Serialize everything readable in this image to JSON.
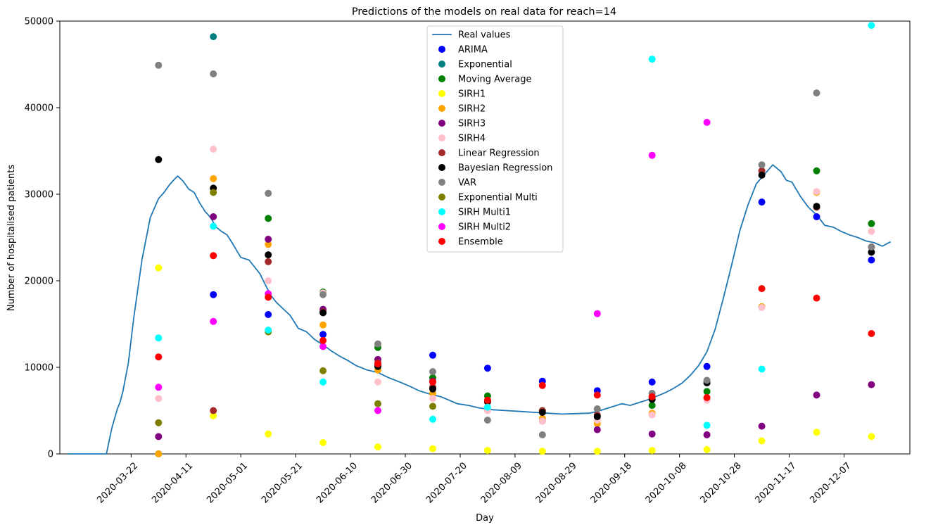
{
  "chart_data": {
    "type": "line",
    "title": "Predictions of the models on real data for reach=14",
    "xlabel": "Day",
    "ylabel": "Number of hospitalised patients",
    "xlim": [
      "2020-02-25",
      "2020-12-31"
    ],
    "ylim": [
      0,
      50000
    ],
    "x_ticks": [
      "2020-03-22",
      "2020-04-11",
      "2020-05-01",
      "2020-05-21",
      "2020-06-10",
      "2020-06-30",
      "2020-07-20",
      "2020-08-09",
      "2020-08-29",
      "2020-09-18",
      "2020-10-08",
      "2020-10-28",
      "2020-11-17",
      "2020-12-07"
    ],
    "y_ticks": [
      0,
      10000,
      20000,
      30000,
      40000,
      50000
    ],
    "grid": false,
    "legend_position": "top-center",
    "prediction_dates": [
      "2020-04-01",
      "2020-04-21",
      "2020-05-11",
      "2020-05-31",
      "2020-06-20",
      "2020-07-10",
      "2020-07-30",
      "2020-08-19",
      "2020-09-08",
      "2020-09-28",
      "2020-10-18",
      "2020-11-07",
      "2020-11-27",
      "2020-12-17"
    ],
    "real_values": {
      "name": "Real values",
      "color": "#1f77b4",
      "x": [
        "2020-02-28",
        "2020-03-06",
        "2020-03-13",
        "2020-03-15",
        "2020-03-17",
        "2020-03-18",
        "2020-03-19",
        "2020-03-21",
        "2020-03-23",
        "2020-03-26",
        "2020-03-29",
        "2020-04-01",
        "2020-04-03",
        "2020-04-05",
        "2020-04-07",
        "2020-04-08",
        "2020-04-10",
        "2020-04-12",
        "2020-04-14",
        "2020-04-16",
        "2020-04-18",
        "2020-04-20",
        "2020-04-22",
        "2020-04-24",
        "2020-04-26",
        "2020-04-28",
        "2020-05-01",
        "2020-05-04",
        "2020-05-06",
        "2020-05-08",
        "2020-05-10",
        "2020-05-12",
        "2020-05-14",
        "2020-05-16",
        "2020-05-19",
        "2020-05-22",
        "2020-05-25",
        "2020-05-28",
        "2020-05-31",
        "2020-06-03",
        "2020-06-06",
        "2020-06-09",
        "2020-06-12",
        "2020-06-16",
        "2020-06-20",
        "2020-06-24",
        "2020-06-28",
        "2020-07-01",
        "2020-07-05",
        "2020-07-09",
        "2020-07-13",
        "2020-07-16",
        "2020-07-19",
        "2020-07-23",
        "2020-07-27",
        "2020-08-01",
        "2020-08-06",
        "2020-08-11",
        "2020-08-16",
        "2020-08-21",
        "2020-08-26",
        "2020-08-31",
        "2020-09-05",
        "2020-09-08",
        "2020-09-11",
        "2020-09-14",
        "2020-09-17",
        "2020-09-20",
        "2020-09-23",
        "2020-09-26",
        "2020-09-30",
        "2020-10-03",
        "2020-10-06",
        "2020-10-09",
        "2020-10-12",
        "2020-10-15",
        "2020-10-18",
        "2020-10-21",
        "2020-10-24",
        "2020-10-27",
        "2020-10-30",
        "2020-11-02",
        "2020-11-05",
        "2020-11-08",
        "2020-11-11",
        "2020-11-14",
        "2020-11-16",
        "2020-11-18",
        "2020-11-21",
        "2020-11-24",
        "2020-11-27",
        "2020-11-30",
        "2020-12-03",
        "2020-12-06",
        "2020-12-09",
        "2020-12-12",
        "2020-12-15",
        "2020-12-18",
        "2020-12-21",
        "2020-12-24"
      ],
      "y": [
        0,
        0,
        0,
        3000,
        5200,
        6000,
        7200,
        10500,
        15800,
        22500,
        27300,
        29500,
        30200,
        31100,
        31800,
        32100,
        31500,
        30600,
        30200,
        29000,
        28000,
        27300,
        26200,
        25700,
        25300,
        24300,
        22700,
        22400,
        21600,
        20800,
        19500,
        18300,
        17500,
        16900,
        16000,
        14500,
        14100,
        13200,
        12600,
        11900,
        11300,
        10800,
        10200,
        9700,
        9400,
        8800,
        8300,
        7900,
        7300,
        6900,
        6600,
        6200,
        5800,
        5600,
        5300,
        5100,
        5000,
        4900,
        4800,
        4700,
        4600,
        4650,
        4700,
        4900,
        5200,
        5500,
        5800,
        5600,
        5900,
        6200,
        6700,
        7100,
        7600,
        8200,
        9100,
        10200,
        11800,
        14400,
        18000,
        21800,
        25800,
        28800,
        31200,
        32300,
        33400,
        32600,
        31600,
        31400,
        29800,
        28500,
        27600,
        26400,
        26200,
        25700,
        25300,
        25000,
        24600,
        24400,
        24000,
        24500
      ]
    },
    "series": [
      {
        "name": "ARIMA",
        "color": "#0000ff",
        "values": [
          null,
          18400,
          16100,
          13800,
          10300,
          11400,
          9900,
          8400,
          7300,
          8300,
          10100,
          29100,
          27400,
          22400
        ]
      },
      {
        "name": "Exponential",
        "color": "#008080",
        "values": [
          0,
          48200,
          null,
          null,
          null,
          null,
          null,
          null,
          null,
          null,
          null,
          null,
          null,
          null
        ]
      },
      {
        "name": "Moving Average",
        "color": "#008000",
        "values": [
          null,
          null,
          27200,
          18700,
          12300,
          8800,
          6700,
          5000,
          4400,
          5600,
          7200,
          17000,
          32700,
          26600
        ]
      },
      {
        "name": "SIRH1",
        "color": "#ffff00",
        "values": [
          21500,
          4400,
          2300,
          1300,
          800,
          600,
          400,
          300,
          300,
          400,
          500,
          1500,
          2500,
          2000
        ]
      },
      {
        "name": "SIRH2",
        "color": "#ffa500",
        "values": [
          0,
          31800,
          24200,
          14900,
          9700,
          7000,
          6000,
          4100,
          3500,
          4700,
          6400,
          17000,
          30200,
          null
        ]
      },
      {
        "name": "SIRH3",
        "color": "#800080",
        "values": [
          2000,
          27400,
          24800,
          16700,
          10900,
          8400,
          null,
          3800,
          2800,
          2300,
          2200,
          3200,
          6800,
          8000
        ]
      },
      {
        "name": "SIRH4",
        "color": "#ffc0cb",
        "values": [
          6400,
          35200,
          20000,
          18600,
          8300,
          6400,
          5000,
          3800,
          3900,
          4500,
          6200,
          16900,
          30300,
          25700
        ]
      },
      {
        "name": "Linear Regression",
        "color": "#a52a2a",
        "values": [
          null,
          5000,
          22200,
          16400,
          10500,
          7700,
          6000,
          5000,
          4500,
          6600,
          8400,
          32700,
          28500,
          23900
        ]
      },
      {
        "name": "Bayesian Regression",
        "color": "#000000",
        "values": [
          34000,
          30700,
          23000,
          16300,
          10100,
          7500,
          6100,
          4800,
          4300,
          6300,
          8200,
          32200,
          28600,
          23300
        ]
      },
      {
        "name": "VAR",
        "color": "#808080",
        "values": [
          44900,
          43900,
          30100,
          18400,
          12700,
          9500,
          3900,
          2200,
          5200,
          7000,
          8500,
          33400,
          41700,
          23900
        ]
      },
      {
        "name": "Exponential Multi",
        "color": "#808000",
        "values": [
          3600,
          30200,
          14100,
          9600,
          5800,
          5500,
          null,
          null,
          null,
          null,
          null,
          null,
          null,
          null
        ]
      },
      {
        "name": "SIRH Multi1",
        "color": "#00ffff",
        "values": [
          13400,
          26300,
          14300,
          8300,
          null,
          4000,
          5400,
          null,
          null,
          45600,
          3300,
          9800,
          null,
          49500
        ]
      },
      {
        "name": "SIRH Multi2",
        "color": "#ff00ff",
        "values": [
          7700,
          15300,
          18500,
          12400,
          5000,
          null,
          null,
          null,
          16200,
          34500,
          38300,
          null,
          null,
          null
        ]
      },
      {
        "name": "Ensemble",
        "color": "#ff0000",
        "values": [
          11200,
          22900,
          18100,
          13100,
          10400,
          8300,
          6200,
          7900,
          6800,
          6600,
          6500,
          19100,
          18000,
          13900
        ]
      }
    ]
  }
}
